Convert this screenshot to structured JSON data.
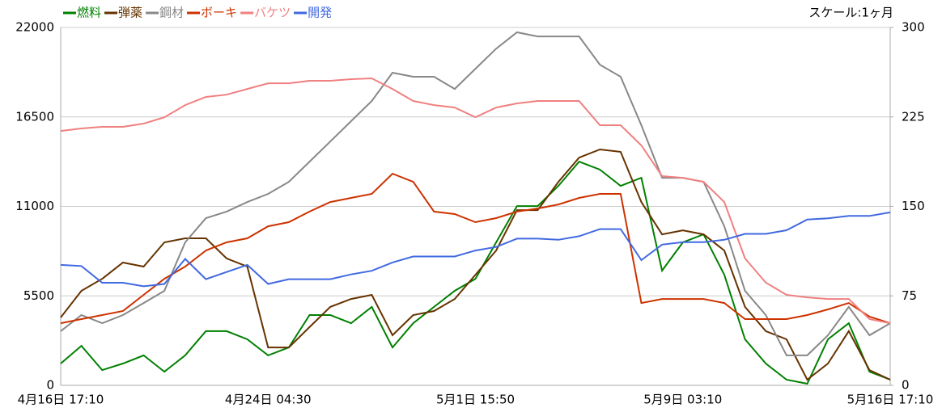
{
  "chart_data": {
    "type": "line",
    "annotation": "スケール:1ヶ月",
    "legend": "top-left",
    "grid": true,
    "categories": [
      "4月16日 17:10",
      null,
      null,
      null,
      null,
      null,
      null,
      null,
      null,
      null,
      "4月24日 04:30",
      null,
      null,
      null,
      null,
      null,
      null,
      null,
      null,
      null,
      "5月1日 15:50",
      null,
      null,
      null,
      null,
      null,
      null,
      null,
      null,
      null,
      "5月9日 03:10",
      null,
      null,
      null,
      null,
      null,
      null,
      null,
      null,
      null,
      "5月16日 17:10"
    ],
    "ylim": [
      0,
      22000
    ],
    "yticks": [
      0,
      5500,
      11000,
      16500,
      22000
    ],
    "y2lim": [
      0,
      300
    ],
    "y2ticks": [
      0,
      75,
      150,
      225,
      300
    ],
    "series": [
      {
        "name": "燃料",
        "color": "#008000",
        "values": [
          1340,
          2430,
          940,
          1340,
          1840,
          840,
          1840,
          3330,
          3330,
          2830,
          1840,
          2330,
          4320,
          4320,
          3820,
          4820,
          2330,
          3820,
          4820,
          5810,
          6550,
          8790,
          11020,
          11020,
          12260,
          13750,
          13260,
          12260,
          12760,
          7050,
          8790,
          9280,
          6800,
          2830,
          1340,
          350,
          100,
          2830,
          3820,
          840,
          350
        ]
      },
      {
        "name": "弾薬",
        "color": "#663300",
        "values": [
          4170,
          5810,
          6550,
          7550,
          7300,
          8790,
          9040,
          9040,
          7800,
          7300,
          2330,
          2330,
          3580,
          4820,
          5310,
          5560,
          3080,
          4320,
          4570,
          5310,
          6800,
          8290,
          10770,
          10770,
          12510,
          14000,
          14500,
          14350,
          11270,
          9280,
          9530,
          9280,
          8290,
          4820,
          3330,
          2830,
          350,
          1340,
          3330,
          940,
          350
        ]
      },
      {
        "name": "鋼材",
        "color": "#888888",
        "values": [
          3330,
          4320,
          3820,
          4320,
          5060,
          5810,
          8790,
          10280,
          10680,
          11270,
          11770,
          12510,
          13750,
          14990,
          16240,
          17480,
          19220,
          18970,
          18970,
          18220,
          19460,
          20700,
          21700,
          21450,
          21450,
          21450,
          19710,
          18970,
          15990,
          12760,
          12760,
          12510,
          9780,
          5810,
          4320,
          1840,
          1840,
          3080,
          4820,
          3080,
          3820
        ]
      },
      {
        "name": "ボーキ",
        "color": "#cc3300",
        "values": [
          3820,
          4070,
          4320,
          4570,
          5560,
          6550,
          7300,
          8290,
          8790,
          9040,
          9780,
          10030,
          10680,
          11270,
          11520,
          11770,
          13010,
          12510,
          10680,
          10530,
          10030,
          10280,
          10680,
          10870,
          11120,
          11520,
          11770,
          11770,
          5060,
          5310,
          5310,
          5310,
          5060,
          4070,
          4070,
          4070,
          4320,
          4670,
          5060,
          4220,
          3820
        ]
      },
      {
        "name": "バケツ",
        "color": "#f08080",
        "values": [
          15640,
          15790,
          15890,
          15890,
          16090,
          16480,
          17230,
          17730,
          17870,
          18220,
          18570,
          18570,
          18720,
          18720,
          18820,
          18870,
          18220,
          17480,
          17230,
          17080,
          16480,
          17080,
          17330,
          17480,
          17480,
          17480,
          15990,
          15990,
          14750,
          12860,
          12760,
          12510,
          11270,
          7800,
          6310,
          5560,
          5410,
          5310,
          5310,
          4070,
          3820
        ]
      },
      {
        "name": "開発",
        "color": "#4169e1",
        "axis": "y2",
        "values": [
          101,
          100,
          86,
          86,
          83,
          85,
          106,
          89,
          95,
          101,
          85,
          89,
          89,
          89,
          93,
          96,
          103,
          108,
          108,
          108,
          113,
          116,
          123,
          123,
          122,
          125,
          131,
          131,
          105,
          118,
          120,
          120,
          122,
          127,
          127,
          130,
          139,
          140,
          142,
          142,
          145
        ]
      }
    ]
  }
}
